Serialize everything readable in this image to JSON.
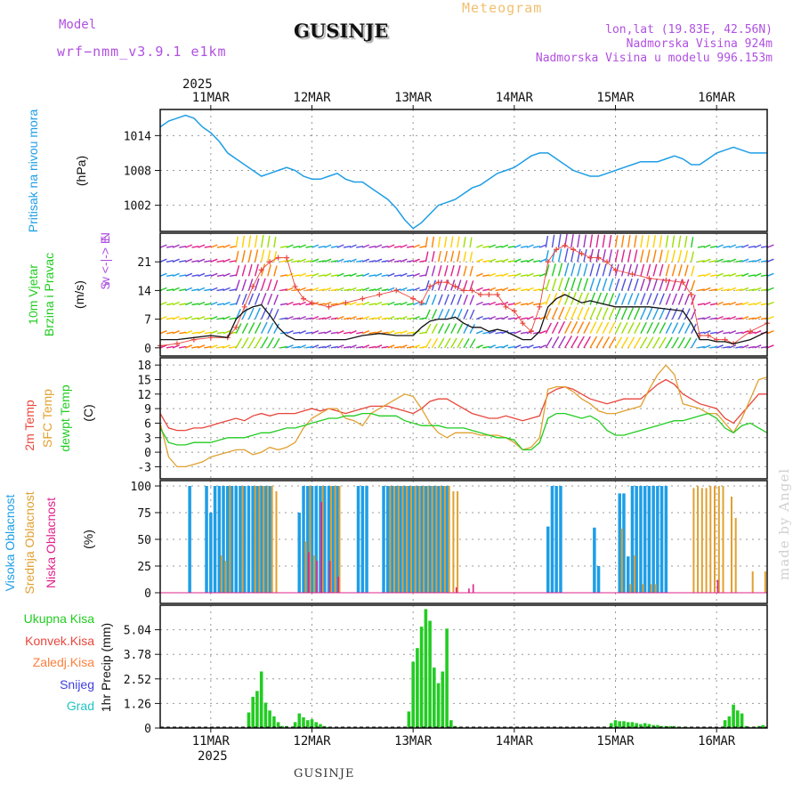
{
  "header": {
    "model_label": "Model",
    "model_name": "wrf−nmm_v3.9.1  e1km",
    "location": "GUSINJE",
    "meteogram": "Meteogram",
    "lonlat": "lon,lat (19.83E, 42.56N)",
    "elevation": "Nadmorska Visina 924m",
    "elevation_model": "Nadmorska Visina u modelu 996.153m",
    "footer_location": "GUSINJE",
    "made_by": "made by Angel"
  },
  "time_axis": {
    "year": "2025",
    "days": [
      "11MAR",
      "12MAR",
      "13MAR",
      "14MAR",
      "15MAR",
      "16MAR"
    ],
    "day_hours_from_start": [
      12,
      36,
      60,
      84,
      108,
      132
    ],
    "total_hours": 144
  },
  "colors": {
    "pressure": "#1e9ee6",
    "temp2m": "#e8463c",
    "sfc_temp": "#e0a030",
    "dewpt": "#22cc22",
    "high_cloud": "#1e9ee6",
    "mid_cloud": "#e0a030",
    "low_cloud": "#e0208c",
    "precip_total": "#22cc22",
    "wind_speed": "#111111",
    "gust": "#e8463c"
  },
  "panel_labels": {
    "pressure": {
      "title": "Pritisak na nivou mora",
      "unit": "(hPa)"
    },
    "wind": {
      "line1": "10m Vjetar",
      "line2": "Brzina i Pravac",
      "unit": "(m/s)",
      "compass": "w <-|-> E",
      "compass_n": "N",
      "compass_s": "S"
    },
    "temp": {
      "t2m": "2m Temp",
      "sfc": "SFC Temp",
      "dew": "dewpt Temp",
      "unit": "(C)"
    },
    "cloud": {
      "high": "Visoka Oblacnost",
      "mid": "Srednja Oblacnost",
      "low": "Niska Oblacnost",
      "unit": "(%)"
    },
    "precip": {
      "total": "Ukupna Kisa",
      "conv": "Konvek.Kisa",
      "frozen": "Zaledj.Kisa",
      "snow": "Snijeg",
      "grad": "Grad",
      "unit": "1hr Precip (mm)"
    }
  },
  "chart_data": [
    {
      "type": "line",
      "name": "pressure",
      "ylabel": "Pritisak na nivou mora (hPa)",
      "yticks": [
        1002,
        1008,
        1014
      ],
      "ylim": [
        997.5,
        1018.5
      ],
      "x_hours": [
        0,
        2,
        4,
        6,
        8,
        10,
        12,
        14,
        16,
        18,
        20,
        22,
        24,
        26,
        28,
        30,
        32,
        34,
        36,
        38,
        40,
        42,
        44,
        46,
        48,
        50,
        52,
        54,
        56,
        58,
        60,
        62,
        64,
        66,
        68,
        70,
        72,
        74,
        76,
        78,
        80,
        82,
        84,
        86,
        88,
        90,
        92,
        94,
        96,
        98,
        100,
        102,
        104,
        106,
        108,
        110,
        112,
        114,
        116,
        118,
        120,
        122,
        124,
        126,
        128,
        130,
        132,
        134,
        136,
        138,
        140,
        142,
        144
      ],
      "values": [
        1015.5,
        1016.5,
        1017,
        1017.5,
        1017,
        1015.5,
        1014.5,
        1013,
        1011,
        1010,
        1009,
        1008,
        1007,
        1007.5,
        1008,
        1008.5,
        1008,
        1007,
        1006.5,
        1006.5,
        1007,
        1007.5,
        1006.5,
        1006,
        1006,
        1005,
        1004,
        1003,
        1001.5,
        999.5,
        998,
        999,
        1000.5,
        1002,
        1002.5,
        1003,
        1004,
        1005,
        1005.5,
        1006.5,
        1007.5,
        1008,
        1008.5,
        1009.5,
        1010.5,
        1011,
        1011,
        1010,
        1009,
        1008,
        1007.5,
        1007,
        1007,
        1007.5,
        1008,
        1008.5,
        1009,
        1009.5,
        1009.5,
        1009.5,
        1010,
        1010.5,
        1010,
        1009,
        1009,
        1010,
        1011,
        1011.5,
        1012,
        1011.5,
        1011,
        1011,
        1011
      ]
    },
    {
      "type": "line",
      "name": "wind",
      "ylabel": "10m Vjetar Brzina i Pravac (m/s)",
      "yticks": [
        0,
        7,
        14,
        21
      ],
      "ylim": [
        -2,
        28
      ],
      "x_hours": [
        0,
        4,
        8,
        12,
        16,
        18,
        20,
        22,
        24,
        26,
        28,
        30,
        32,
        34,
        36,
        40,
        44,
        48,
        52,
        56,
        60,
        62,
        64,
        66,
        68,
        70,
        72,
        74,
        76,
        78,
        80,
        82,
        84,
        86,
        88,
        90,
        92,
        94,
        96,
        98,
        100,
        102,
        104,
        106,
        108,
        112,
        116,
        120,
        124,
        126,
        128,
        130,
        132,
        134,
        136,
        140,
        144
      ],
      "series": [
        {
          "name": "speed",
          "values": [
            2,
            2,
            2.5,
            3,
            2.5,
            7,
            9,
            10,
            10.5,
            8,
            5,
            3,
            2,
            2,
            2,
            2,
            2,
            3,
            3.5,
            3,
            3,
            5,
            6.5,
            7,
            7,
            7.5,
            6,
            5,
            5,
            4,
            4.5,
            4,
            3,
            2,
            2,
            4,
            10,
            12,
            13,
            12,
            11,
            11.5,
            11,
            10.5,
            10,
            10,
            10,
            9.5,
            9,
            6,
            2,
            2,
            1.5,
            1.5,
            1,
            2,
            4
          ]
        },
        {
          "name": "gust",
          "values": [
            0.5,
            1,
            2,
            2.5,
            2.5,
            5,
            10,
            15,
            19,
            21,
            22,
            22,
            15,
            12,
            11,
            10,
            11,
            12,
            13,
            14,
            12,
            11,
            15,
            16,
            16,
            15,
            14,
            14,
            13,
            13,
            13,
            10,
            9,
            6,
            4,
            10,
            21,
            24,
            25,
            24,
            23,
            22,
            22,
            21,
            19,
            18,
            17,
            16.5,
            16,
            13,
            3,
            3,
            2,
            2,
            1,
            4,
            6
          ]
        }
      ]
    },
    {
      "type": "line",
      "name": "temperature",
      "ylabel": "Temp (C)",
      "yticks": [
        -3,
        0,
        3,
        6,
        9,
        12,
        15,
        18
      ],
      "ylim": [
        -5.5,
        19.5
      ],
      "x_hours": [
        0,
        2,
        4,
        6,
        8,
        10,
        12,
        14,
        16,
        18,
        20,
        22,
        24,
        26,
        28,
        30,
        32,
        34,
        36,
        38,
        40,
        42,
        44,
        46,
        48,
        50,
        52,
        54,
        56,
        58,
        60,
        62,
        64,
        66,
        68,
        70,
        72,
        74,
        76,
        78,
        80,
        82,
        84,
        86,
        88,
        90,
        92,
        94,
        96,
        98,
        100,
        102,
        104,
        106,
        108,
        110,
        112,
        114,
        116,
        118,
        120,
        122,
        124,
        126,
        128,
        130,
        132,
        134,
        136,
        138,
        140,
        142,
        144
      ],
      "series": [
        {
          "name": "2m Temp",
          "values": [
            8,
            5,
            4.5,
            4.5,
            5,
            5,
            5.5,
            6,
            6.5,
            7,
            6.5,
            7.5,
            8,
            7.5,
            8,
            8,
            8,
            8.5,
            9,
            8.5,
            9,
            8.5,
            8,
            8.5,
            9,
            9.5,
            9.5,
            9.5,
            9,
            8.5,
            8,
            9,
            10.5,
            11,
            11,
            10,
            9,
            8,
            7.5,
            7,
            7,
            7.5,
            7,
            6.5,
            7,
            7.5,
            12,
            13,
            13.5,
            13,
            12,
            11,
            10.5,
            10,
            10.5,
            11,
            11,
            11,
            12.5,
            14,
            15,
            14,
            12,
            11,
            10,
            9.5,
            9,
            7,
            6,
            8,
            10,
            12,
            12
          ]
        },
        {
          "name": "SFC Temp",
          "values": [
            6,
            -1,
            -3,
            -3,
            -2.5,
            -2,
            -1,
            -0.5,
            0,
            0.5,
            0.5,
            -0.5,
            0,
            1,
            0.5,
            1,
            2,
            5,
            7,
            8,
            9,
            9,
            7,
            6.5,
            5.5,
            8,
            9,
            10,
            11,
            12,
            11.5,
            9,
            6,
            4,
            3,
            4,
            4,
            4,
            3.5,
            3.5,
            3.5,
            3,
            2,
            0.5,
            1,
            3,
            13,
            13.5,
            13.5,
            12.5,
            11,
            10,
            8.5,
            8,
            8,
            8.5,
            9,
            9.5,
            13,
            16,
            18,
            16,
            10,
            9.5,
            9,
            8,
            8,
            6,
            4,
            7,
            11,
            15,
            15.5
          ]
        },
        {
          "name": "dewpt Temp",
          "values": [
            5,
            2,
            1.5,
            1.5,
            2,
            2,
            2,
            2.5,
            3,
            3,
            3,
            3.5,
            4,
            4,
            4.5,
            5,
            5,
            5.5,
            6,
            6.5,
            7,
            7,
            7.5,
            7.5,
            8,
            8,
            7.5,
            7.5,
            7.5,
            6.5,
            6,
            5.5,
            5.5,
            5.5,
            5,
            5,
            5,
            4.5,
            4,
            3.5,
            3,
            3,
            2.5,
            0.5,
            0.5,
            2,
            7,
            8,
            8,
            7.5,
            7,
            7.5,
            6.5,
            4.5,
            3.5,
            3.5,
            4,
            4.5,
            5,
            5.5,
            6,
            6.5,
            6.5,
            7,
            7.5,
            8,
            7,
            5,
            4,
            5.5,
            6,
            5,
            4
          ]
        }
      ]
    },
    {
      "type": "bar",
      "name": "cloud",
      "ylabel": "Oblacnost (%)",
      "yticks": [
        0,
        25,
        50,
        75,
        100
      ],
      "ylim": [
        -10,
        105
      ],
      "series": [
        {
          "name": "Visoka Oblacnost",
          "hours": [
            7,
            11,
            12,
            13,
            14,
            15,
            16,
            17,
            18,
            19,
            20,
            21,
            22,
            23,
            24,
            25,
            26,
            33,
            34,
            35,
            36,
            37,
            38,
            39,
            40,
            41,
            42,
            47,
            48,
            49,
            53,
            54,
            55,
            56,
            57,
            58,
            59,
            60,
            61,
            62,
            63,
            64,
            65,
            66,
            67,
            68,
            92,
            93,
            94,
            95,
            103,
            104,
            109,
            110,
            111,
            112,
            113,
            114,
            115,
            116,
            117,
            118,
            119,
            120
          ],
          "values": [
            100,
            100,
            75,
            100,
            100,
            100,
            100,
            100,
            100,
            100,
            100,
            100,
            100,
            100,
            100,
            100,
            100,
            75,
            100,
            100,
            100,
            100,
            100,
            100,
            100,
            100,
            100,
            100,
            100,
            100,
            100,
            100,
            100,
            100,
            100,
            100,
            100,
            100,
            100,
            100,
            100,
            100,
            100,
            100,
            100,
            100,
            62,
            100,
            100,
            100,
            61,
            25,
            93,
            93,
            34,
            100,
            100,
            100,
            100,
            100,
            100,
            100,
            100,
            100
          ]
        },
        {
          "name": "Srednja Oblacnost",
          "hours": [
            14,
            15,
            16,
            19,
            22,
            23,
            24,
            25,
            26,
            27,
            34,
            35,
            36,
            38,
            40,
            41,
            42,
            54,
            55,
            56,
            57,
            58,
            59,
            60,
            61,
            62,
            63,
            64,
            65,
            66,
            67,
            68,
            69,
            70,
            109,
            111,
            112,
            114,
            116,
            117,
            126,
            127,
            128,
            129,
            130,
            131,
            132,
            133,
            135,
            136,
            140,
            143
          ],
          "values": [
            35,
            30,
            100,
            100,
            100,
            100,
            100,
            100,
            100,
            95,
            48,
            100,
            35,
            100,
            100,
            100,
            100,
            100,
            100,
            100,
            100,
            100,
            100,
            100,
            100,
            100,
            100,
            100,
            100,
            100,
            100,
            100,
            95,
            95,
            60,
            8,
            35,
            8,
            8,
            8,
            98,
            100,
            98,
            98,
            100,
            100,
            100,
            100,
            90,
            70,
            20,
            20
          ]
        },
        {
          "name": "Niska Oblacnost",
          "hours": [
            35,
            37,
            38,
            40,
            42,
            70,
            73,
            74,
            132
          ],
          "values": [
            38,
            30,
            85,
            30,
            15,
            5,
            4,
            8,
            12
          ]
        }
      ]
    },
    {
      "type": "bar",
      "name": "precipitation",
      "ylabel": "1hr Precip (mm)",
      "yticks": [
        0,
        1.26,
        2.52,
        3.78,
        5.04
      ],
      "ylim": [
        0,
        6.3
      ],
      "series": [
        {
          "name": "Ukupna Kisa",
          "hours": [
            21,
            22,
            23,
            24,
            25,
            26,
            27,
            28,
            29,
            30,
            32,
            33,
            34,
            35,
            36,
            37,
            38,
            39,
            40,
            59,
            60,
            61,
            62,
            63,
            64,
            65,
            66,
            67,
            68,
            69,
            70,
            71,
            107,
            108,
            109,
            110,
            111,
            112,
            113,
            114,
            115,
            116,
            117,
            118,
            119,
            120,
            121,
            122,
            123,
            124,
            125,
            126,
            134,
            135,
            136,
            137,
            138,
            139,
            140,
            141,
            142,
            143
          ],
          "values": [
            0.8,
            1.6,
            1.9,
            2.9,
            1.3,
            0.9,
            0.6,
            0.3,
            0.1,
            0.1,
            0.3,
            0.75,
            0.55,
            0.4,
            0.45,
            0.3,
            0.2,
            0.1,
            0.05,
            0.85,
            3.4,
            4.1,
            5.2,
            6.1,
            5.5,
            3.1,
            2.3,
            2.9,
            5.1,
            0.4,
            0.1,
            0.05,
            0.25,
            0.4,
            0.35,
            0.35,
            0.3,
            0.3,
            0.25,
            0.2,
            0.25,
            0.2,
            0.15,
            0.15,
            0.1,
            0.1,
            0.1,
            0.1,
            0.05,
            0.05,
            0.05,
            0.05,
            0.4,
            0.6,
            1.2,
            0.9,
            0.75,
            0.1,
            0.05,
            0.05,
            0.1,
            0.15
          ]
        }
      ]
    }
  ]
}
